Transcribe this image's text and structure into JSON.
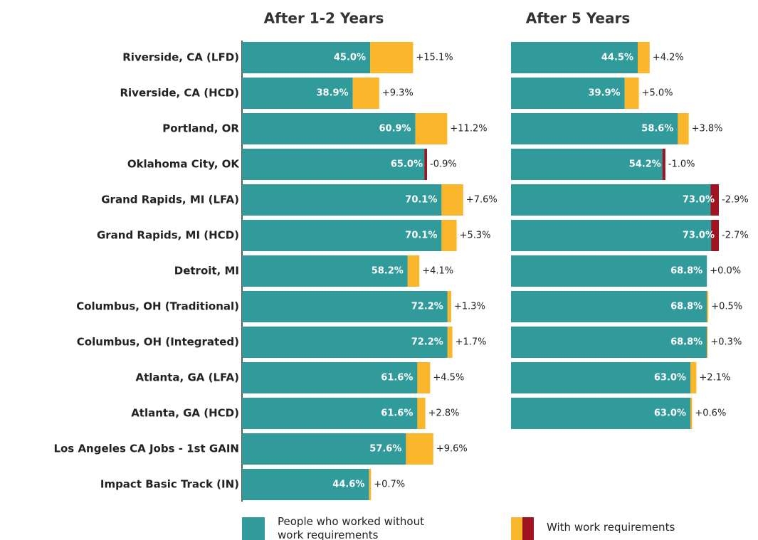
{
  "chart_data": [
    {
      "type": "bar",
      "title": "After 1-2 Years",
      "categories": [
        "Riverside, CA (LFD)",
        "Riverside, CA (HCD)",
        "Portland, OR",
        "Oklahoma City, OK",
        "Grand Rapids, MI (LFA)",
        "Grand Rapids, MI (HCD)",
        "Detroit, MI",
        "Columbus, OH (Traditional)",
        "Columbus, OH (Integrated)",
        "Atlanta, GA (LFA)",
        "Atlanta, GA (HCD)",
        "Los Angeles CA Jobs - 1st GAIN",
        "Impact Basic Track (IN)"
      ],
      "series": [
        {
          "name": "People who worked without work requirements",
          "color": "#319a9a",
          "values": [
            45.0,
            38.9,
            60.9,
            65.0,
            70.1,
            70.1,
            58.2,
            72.2,
            72.2,
            61.6,
            61.6,
            57.6,
            44.6
          ],
          "value_labels": [
            "45.0%",
            "38.9%",
            "60.9%",
            "65.0%",
            "70.1%",
            "70.1%",
            "58.2%",
            "72.2%",
            "72.2%",
            "61.6%",
            "61.6%",
            "57.6%",
            "44.6%"
          ]
        },
        {
          "name": "With work requirements",
          "color": "#fbb72c",
          "negative_color": "#a01422",
          "values": [
            15.1,
            9.3,
            11.2,
            -0.9,
            7.6,
            5.3,
            4.1,
            1.3,
            1.7,
            4.5,
            2.8,
            9.6,
            0.7
          ],
          "value_labels": [
            "+15.1%",
            "+9.3%",
            "+11.2%",
            "-0.9%",
            "+7.6%",
            "+5.3%",
            "+4.1%",
            "+1.3%",
            "+1.7%",
            "+4.5%",
            "+2.8%",
            "+9.6%",
            "+0.7%"
          ]
        }
      ]
    },
    {
      "type": "bar",
      "title": "After 5 Years",
      "series": [
        {
          "color": "#319a9a",
          "values": [
            44.5,
            39.9,
            58.6,
            54.2,
            73.0,
            73.0,
            68.8,
            68.8,
            68.8,
            63.0,
            63.0
          ],
          "value_labels": [
            "44.5%",
            "39.9%",
            "58.6%",
            "54.2%",
            "73.0%",
            "73.0%",
            "68.8%",
            "68.8%",
            "68.8%",
            "63.0%",
            "63.0%"
          ]
        },
        {
          "color": "#fbb72c",
          "negative_color": "#a01422",
          "values": [
            4.2,
            5.0,
            3.8,
            -1.0,
            -2.9,
            -2.7,
            0.0,
            0.5,
            0.3,
            2.1,
            0.6
          ],
          "value_labels": [
            "+4.2%",
            "+5.0%",
            "+3.8%",
            "-1.0%",
            "-2.9%",
            "-2.7%",
            "+0.0%",
            "+0.5%",
            "+0.3%",
            "+2.1%",
            "+0.6%"
          ]
        }
      ]
    }
  ]
}
